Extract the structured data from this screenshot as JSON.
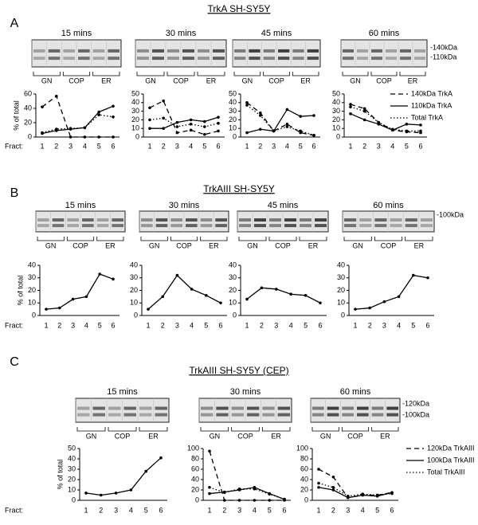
{
  "panels": [
    {
      "label": "A",
      "title": "TrkA SH-SY5Y",
      "markers": [
        "-140kDa",
        "-110kDa"
      ],
      "groups": [
        "GN",
        "COP",
        "ER"
      ]
    },
    {
      "label": "B",
      "title": "TrkAIII SH-SY5Y",
      "markers": [
        "-100kDa"
      ],
      "groups": [
        "GN",
        "COP",
        "ER"
      ]
    },
    {
      "label": "C",
      "title": "TrkAIII SH-SY5Y (CEP)",
      "markers": [
        "-120kDa",
        "-100kDa"
      ],
      "groups": [
        "GN",
        "COP",
        "ER"
      ]
    }
  ],
  "chart_data": [
    {
      "type": "line",
      "title": "15 mins",
      "ylabel": "% of total",
      "xlabel": "Fract:",
      "categories": [
        "1",
        "2",
        "3",
        "4",
        "5",
        "6"
      ],
      "ylim": [
        0,
        60
      ],
      "yticks": [
        0,
        20,
        40,
        60
      ],
      "series": [
        {
          "name": "140kDa TrkA",
          "color": "#000",
          "dash": "dashed",
          "values": [
            42,
            57,
            0,
            0,
            0,
            0
          ]
        },
        {
          "name": "110kDa TrkA",
          "color": "#000",
          "dash": "solid",
          "values": [
            5,
            9,
            11,
            13,
            35,
            43
          ]
        },
        {
          "name": "Total TrkA",
          "color": "#000",
          "dash": "dotted",
          "values": [
            6,
            11,
            12,
            13,
            31,
            28
          ]
        }
      ]
    },
    {
      "type": "line",
      "title": "30 mins",
      "categories": [
        "1",
        "2",
        "3",
        "4",
        "5",
        "6"
      ],
      "ylim": [
        0,
        50
      ],
      "yticks": [
        0,
        10,
        20,
        30,
        40,
        50
      ],
      "series": [
        {
          "name": "140kDa TrkA",
          "color": "#000",
          "dash": "dashed",
          "values": [
            34,
            42,
            5,
            8,
            3,
            7
          ]
        },
        {
          "name": "110kDa TrkA",
          "color": "#000",
          "dash": "solid",
          "values": [
            10,
            10,
            17,
            20,
            18,
            23
          ]
        },
        {
          "name": "Total TrkA",
          "color": "#000",
          "dash": "dotted",
          "values": [
            20,
            22,
            12,
            15,
            12,
            16
          ]
        }
      ]
    },
    {
      "type": "line",
      "title": "45 mins",
      "categories": [
        "1",
        "2",
        "3",
        "4",
        "5",
        "6"
      ],
      "ylim": [
        0,
        50
      ],
      "yticks": [
        0,
        10,
        20,
        30,
        40,
        50
      ],
      "series": [
        {
          "name": "140kDa TrkA",
          "color": "#000",
          "dash": "dashed",
          "values": [
            40,
            28,
            7,
            15,
            5,
            2
          ]
        },
        {
          "name": "110kDa TrkA",
          "color": "#000",
          "dash": "solid",
          "values": [
            5,
            9,
            7,
            32,
            24,
            25
          ]
        },
        {
          "name": "Total TrkA",
          "color": "#000",
          "dash": "dotted",
          "values": [
            37,
            25,
            7,
            12,
            7,
            2
          ]
        }
      ]
    },
    {
      "type": "line",
      "title": "60 mins",
      "categories": [
        "1",
        "2",
        "3",
        "4",
        "5",
        "6"
      ],
      "ylim": [
        0,
        50
      ],
      "yticks": [
        0,
        10,
        20,
        30,
        40,
        50
      ],
      "series": [
        {
          "name": "140kDa TrkA",
          "color": "#000",
          "dash": "dashed",
          "values": [
            38,
            33,
            17,
            8,
            6,
            5
          ]
        },
        {
          "name": "110kDa TrkA",
          "color": "#000",
          "dash": "solid",
          "values": [
            27,
            20,
            15,
            8,
            15,
            14
          ]
        },
        {
          "name": "Total TrkA",
          "color": "#000",
          "dash": "dotted",
          "values": [
            35,
            30,
            17,
            9,
            7,
            7
          ]
        }
      ]
    },
    {
      "type": "line",
      "title": "15 mins",
      "ylabel": "% of total",
      "xlabel": "Fract:",
      "categories": [
        "1",
        "2",
        "3",
        "4",
        "5",
        "6"
      ],
      "ylim": [
        0,
        40
      ],
      "yticks": [
        0,
        10,
        20,
        30,
        40
      ],
      "series": [
        {
          "color": "#000",
          "dash": "solid",
          "values": [
            5,
            6,
            13,
            15,
            33,
            29
          ]
        }
      ]
    },
    {
      "type": "line",
      "title": "30 mins",
      "categories": [
        "1",
        "2",
        "3",
        "4",
        "5",
        "6"
      ],
      "ylim": [
        0,
        40
      ],
      "yticks": [
        0,
        10,
        20,
        30,
        40
      ],
      "series": [
        {
          "color": "#000",
          "dash": "solid",
          "values": [
            5,
            15,
            32,
            21,
            16,
            10
          ]
        }
      ]
    },
    {
      "type": "line",
      "title": "45 mins",
      "categories": [
        "1",
        "2",
        "3",
        "4",
        "5",
        "6"
      ],
      "ylim": [
        0,
        40
      ],
      "yticks": [
        0,
        10,
        20,
        30,
        40
      ],
      "series": [
        {
          "color": "#000",
          "dash": "solid",
          "values": [
            13,
            22,
            21,
            17,
            16,
            10
          ]
        }
      ]
    },
    {
      "type": "line",
      "title": "60 mins",
      "categories": [
        "1",
        "2",
        "3",
        "4",
        "5",
        "6"
      ],
      "ylim": [
        0,
        40
      ],
      "yticks": [
        0,
        10,
        20,
        30,
        40
      ],
      "series": [
        {
          "color": "#000",
          "dash": "solid",
          "values": [
            5,
            6,
            11,
            15,
            32,
            30
          ]
        }
      ]
    },
    {
      "type": "line",
      "title": "15 mins",
      "ylabel": "% of total",
      "xlabel": "Fract:",
      "categories": [
        "1",
        "2",
        "3",
        "4",
        "5",
        "6"
      ],
      "ylim": [
        0,
        50
      ],
      "yticks": [
        0,
        10,
        20,
        30,
        40,
        50
      ],
      "series": [
        {
          "color": "#000",
          "dash": "solid",
          "values": [
            7,
            5,
            7,
            10,
            28,
            41
          ]
        }
      ]
    },
    {
      "type": "line",
      "title": "30 mins",
      "categories": [
        "1",
        "2",
        "3",
        "4",
        "5",
        "6"
      ],
      "ylim": [
        0,
        100
      ],
      "yticks": [
        0,
        20,
        40,
        60,
        80,
        100
      ],
      "series": [
        {
          "name": "120kDa TrkAIII",
          "color": "#000",
          "dash": "dashed",
          "values": [
            95,
            0,
            0,
            0,
            0,
            0
          ]
        },
        {
          "name": "100kDa TrkAIII",
          "color": "#000",
          "dash": "solid",
          "values": [
            13,
            16,
            20,
            25,
            13,
            2
          ]
        },
        {
          "name": "Total TrkAIII",
          "color": "#000",
          "dash": "dotted",
          "values": [
            25,
            15,
            22,
            22,
            12,
            2
          ]
        }
      ]
    },
    {
      "type": "line",
      "title": "60 mins",
      "categories": [
        "1",
        "2",
        "3",
        "4",
        "5",
        "6"
      ],
      "ylim": [
        0,
        100
      ],
      "yticks": [
        0,
        20,
        40,
        60,
        80,
        100
      ],
      "series": [
        {
          "name": "120kDa TrkAIII",
          "color": "#000",
          "dash": "dashed",
          "values": [
            60,
            45,
            5,
            10,
            10,
            15
          ]
        },
        {
          "name": "100kDa TrkAIII",
          "color": "#000",
          "dash": "solid",
          "values": [
            25,
            20,
            5,
            10,
            8,
            15
          ]
        },
        {
          "name": "Total TrkAIII",
          "color": "#000",
          "dash": "dotted",
          "values": [
            33,
            25,
            8,
            12,
            10,
            13
          ]
        }
      ]
    }
  ]
}
